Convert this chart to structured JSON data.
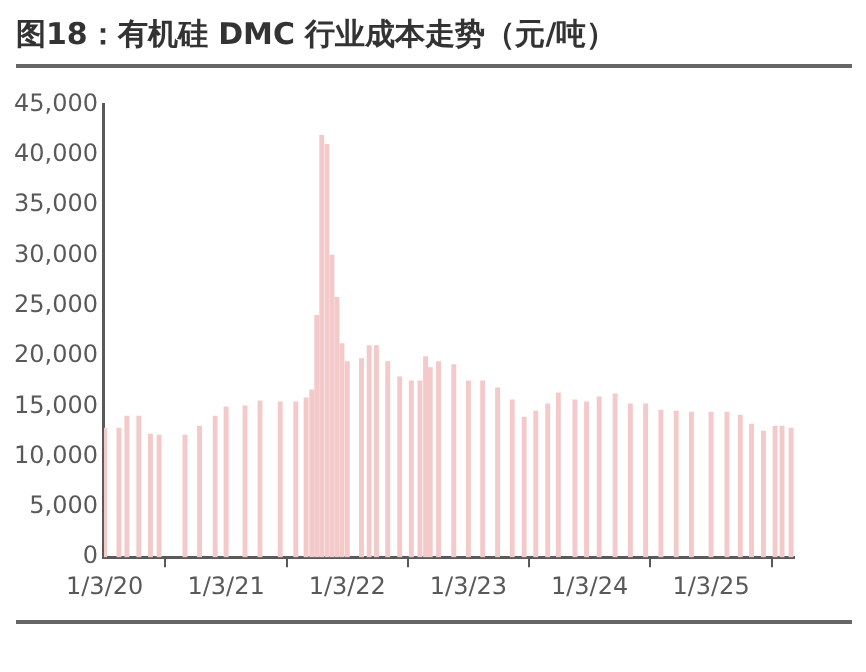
{
  "chart_data": {
    "type": "bar",
    "title": "图18：有机硅 DMC 行业成本走势（元/吨）",
    "x": [
      "2020-01-03",
      "2020-02-15",
      "2020-03-10",
      "2020-04-15",
      "2020-05-20",
      "2020-06-15",
      "2020-09-01",
      "2020-10-15",
      "2020-12-01",
      "2021-01-03",
      "2021-03-01",
      "2021-04-15",
      "2021-06-15",
      "2021-08-01",
      "2021-09-01",
      "2021-09-18",
      "2021-10-03",
      "2021-10-18",
      "2021-11-03",
      "2021-11-18",
      "2021-12-03",
      "2021-12-18",
      "2022-01-03",
      "2022-02-15",
      "2022-03-10",
      "2022-04-01",
      "2022-05-05",
      "2022-06-10",
      "2022-07-15",
      "2022-08-10",
      "2022-08-27",
      "2022-09-10",
      "2022-10-05",
      "2022-11-20",
      "2023-01-03",
      "2023-02-15",
      "2023-04-01",
      "2023-05-15",
      "2023-06-20",
      "2023-07-25",
      "2023-08-30",
      "2023-10-01",
      "2023-11-20",
      "2023-12-25",
      "2024-02-01",
      "2024-03-20",
      "2024-05-05",
      "2024-06-20",
      "2024-08-05",
      "2024-09-20",
      "2024-11-05",
      "2025-01-03",
      "2025-02-20",
      "2025-04-01",
      "2025-05-05",
      "2025-06-10",
      "2025-07-15",
      "2025-08-05",
      "2025-09-01"
    ],
    "values": [
      12800,
      12800,
      14000,
      14000,
      12200,
      12100,
      12100,
      13000,
      14000,
      14900,
      15000,
      15500,
      15400,
      15400,
      15800,
      16600,
      24000,
      41900,
      41000,
      30000,
      25800,
      21200,
      19400,
      19700,
      21000,
      21000,
      19400,
      17900,
      17500,
      17500,
      19900,
      18800,
      19400,
      19100,
      17500,
      17500,
      16800,
      15600,
      13900,
      14500,
      15200,
      16300,
      15600,
      15400,
      15900,
      16200,
      15200,
      15200,
      14600,
      14500,
      14400,
      14400,
      14400,
      14100,
      13200,
      12500,
      13000,
      13000,
      12800
    ],
    "color": "#f4c9c9",
    "xlim": [
      "2020-01-01",
      "2025-09-10"
    ],
    "xticks": [
      {
        "value": "2020-01-03",
        "label": "1/3/20"
      },
      {
        "value": "2021-01-03",
        "label": "1/3/21"
      },
      {
        "value": "2022-01-03",
        "label": "1/3/22"
      },
      {
        "value": "2023-01-03",
        "label": "1/3/23"
      },
      {
        "value": "2024-01-03",
        "label": "1/3/24"
      },
      {
        "value": "2025-01-03",
        "label": "1/3/25"
      }
    ],
    "ylim": [
      0,
      45000
    ],
    "yticks": [
      {
        "value": 0,
        "label": "0"
      },
      {
        "value": 5000,
        "label": "5,000"
      },
      {
        "value": 10000,
        "label": "10,000"
      },
      {
        "value": 15000,
        "label": "15,000"
      },
      {
        "value": 20000,
        "label": "20,000"
      },
      {
        "value": 25000,
        "label": "25,000"
      },
      {
        "value": 30000,
        "label": "30,000"
      },
      {
        "value": 35000,
        "label": "35,000"
      },
      {
        "value": 40000,
        "label": "40,000"
      },
      {
        "value": 45000,
        "label": "45,000"
      }
    ],
    "grid": false,
    "legend": false
  }
}
